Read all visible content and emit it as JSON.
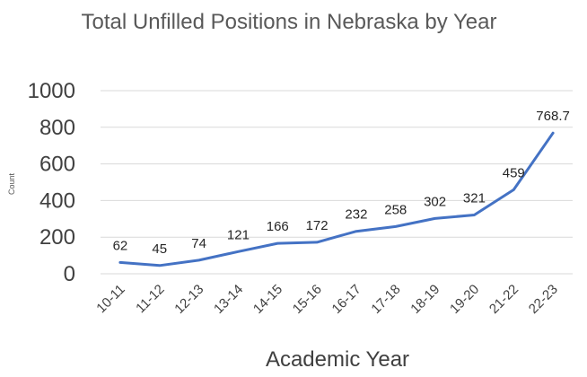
{
  "chart_data": {
    "type": "line",
    "title": "Total Unfilled Positions in Nebraska by Year",
    "xlabel": "Academic Year",
    "ylabel": "Count",
    "categories": [
      "10-11",
      "11-12",
      "12-13",
      "13-14",
      "14-15",
      "15-16",
      "16-17",
      "17-18",
      "18-19",
      "19-20",
      "21-22",
      "22-23"
    ],
    "values": [
      62,
      45,
      74,
      121,
      166,
      172,
      232,
      258,
      302,
      321,
      459,
      768.7
    ],
    "data_labels": [
      "62",
      "45",
      "74",
      "121",
      "166",
      "172",
      "232",
      "258",
      "302",
      "321",
      "459",
      "768.7"
    ],
    "yticks": [
      "0",
      "200",
      "400",
      "600",
      "800",
      "1000"
    ],
    "ylim": [
      0,
      1000
    ],
    "grid": true,
    "legend": "none",
    "series_color": "#4472c4"
  }
}
